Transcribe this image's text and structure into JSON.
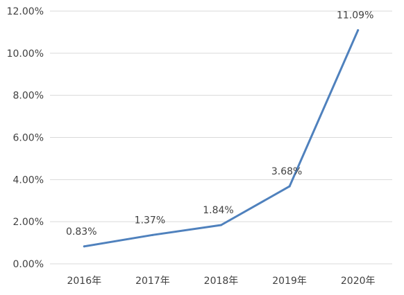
{
  "chart_data": {
    "type": "line",
    "title": "",
    "xlabel": "",
    "ylabel": "",
    "categories": [
      "2016年",
      "2017年",
      "2018年",
      "2019年",
      "2020年"
    ],
    "series": [
      {
        "values": [
          0.83,
          1.37,
          1.84,
          3.68,
          11.09
        ],
        "color": "#4f81bd"
      }
    ],
    "data_labels": [
      "0.83%",
      "1.37%",
      "1.84%",
      "3.68%",
      "11.09%"
    ],
    "y_ticks": [
      0,
      2,
      4,
      6,
      8,
      10,
      12
    ],
    "y_tick_labels": [
      "0.00%",
      "2.00%",
      "4.00%",
      "6.00%",
      "8.00%",
      "10.00%",
      "12.00%"
    ],
    "ylim": [
      0,
      12
    ],
    "grid": true,
    "legend": "none"
  }
}
